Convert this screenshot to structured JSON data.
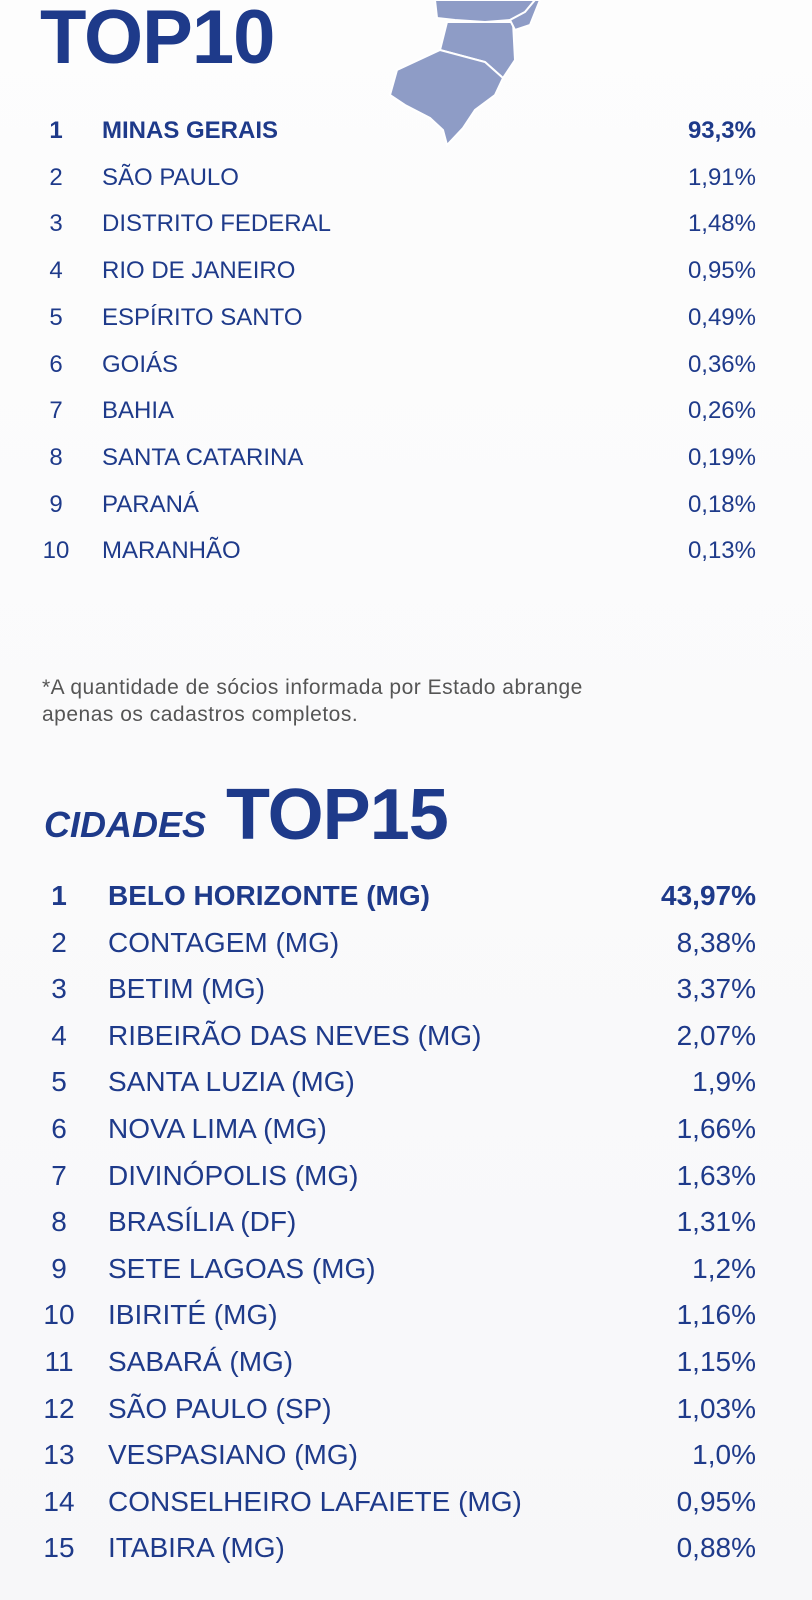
{
  "states": {
    "title": "TOP10",
    "rows": [
      {
        "rank": "1",
        "name": "MINAS GERAIS",
        "pct": "93,3%"
      },
      {
        "rank": "2",
        "name": "SÃO PAULO",
        "pct": "1,91%"
      },
      {
        "rank": "3",
        "name": "DISTRITO FEDERAL",
        "pct": "1,48%"
      },
      {
        "rank": "4",
        "name": "RIO DE JANEIRO",
        "pct": "0,95%"
      },
      {
        "rank": "5",
        "name": "ESPÍRITO SANTO",
        "pct": "0,49%"
      },
      {
        "rank": "6",
        "name": "GOIÁS",
        "pct": "0,36%"
      },
      {
        "rank": "7",
        "name": "BAHIA",
        "pct": "0,26%"
      },
      {
        "rank": "8",
        "name": "SANTA CATARINA",
        "pct": "0,19%"
      },
      {
        "rank": "9",
        "name": "PARANÁ",
        "pct": "0,18%"
      },
      {
        "rank": "10",
        "name": "MARANHÃO",
        "pct": "0,13%"
      }
    ]
  },
  "note": "*A quantidade de sócios informada por Estado abrange apenas os cadastros completos.",
  "cities": {
    "label": "CIDADES",
    "title": "TOP15",
    "rows": [
      {
        "rank": "1",
        "name": "BELO HORIZONTE (MG)",
        "pct": "43,97%"
      },
      {
        "rank": "2",
        "name": "CONTAGEM (MG)",
        "pct": "8,38%"
      },
      {
        "rank": "3",
        "name": "BETIM (MG)",
        "pct": "3,37%"
      },
      {
        "rank": "4",
        "name": "RIBEIRÃO DAS NEVES (MG)",
        "pct": "2,07%"
      },
      {
        "rank": "5",
        "name": "SANTA LUZIA (MG)",
        "pct": "1,9%"
      },
      {
        "rank": "6",
        "name": "NOVA LIMA (MG)",
        "pct": "1,66%"
      },
      {
        "rank": "7",
        "name": "DIVINÓPOLIS (MG)",
        "pct": "1,63%"
      },
      {
        "rank": "8",
        "name": "BRASÍLIA (DF)",
        "pct": "1,31%"
      },
      {
        "rank": "9",
        "name": "SETE LAGOAS (MG)",
        "pct": "1,2%"
      },
      {
        "rank": "10",
        "name": "IBIRITÉ (MG)",
        "pct": "1,16%"
      },
      {
        "rank": "11",
        "name": "SABARÁ (MG)",
        "pct": "1,15%"
      },
      {
        "rank": "12",
        "name": "SÃO PAULO (SP)",
        "pct": "1,03%"
      },
      {
        "rank": "13",
        "name": "VESPASIANO (MG)",
        "pct": "1,0%"
      },
      {
        "rank": "14",
        "name": "CONSELHEIRO LAFAIETE (MG)",
        "pct": "0,95%"
      },
      {
        "rank": "15",
        "name": "ITABIRA (MG)",
        "pct": "0,88%"
      }
    ]
  }
}
